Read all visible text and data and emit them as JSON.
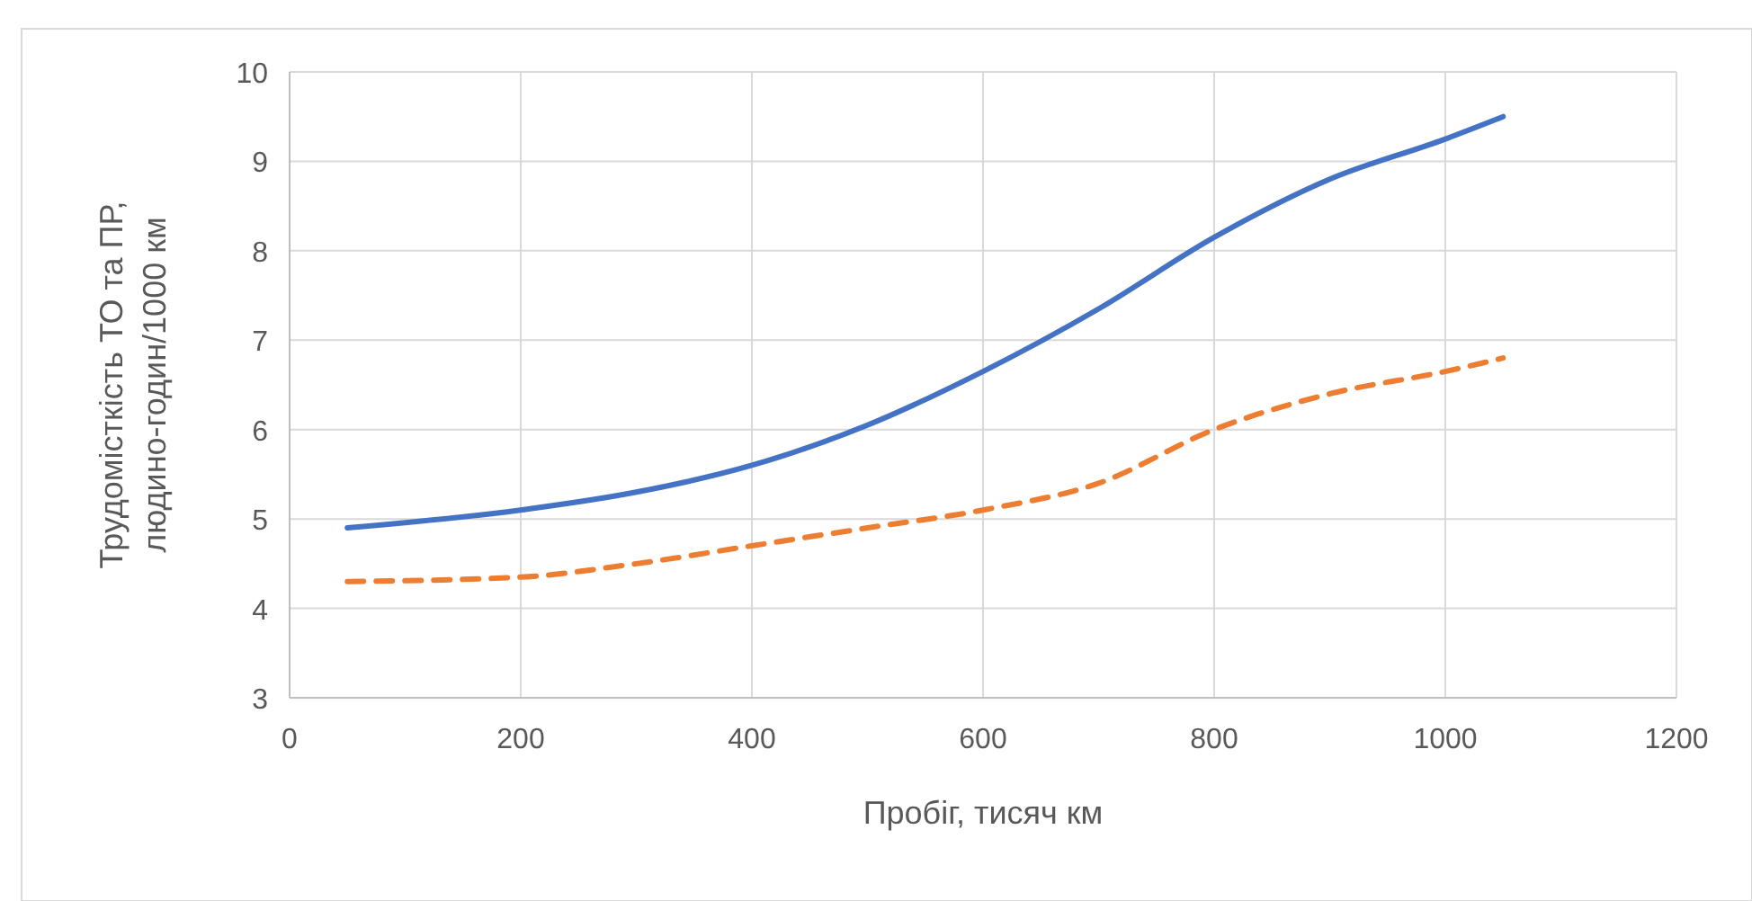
{
  "chart_data": {
    "type": "line",
    "xlabel": "Пробіг, тисяч км",
    "ylabel": "Трудомісткість ТО та ПР, людино-годин/1000 км",
    "x": [
      50,
      200,
      300,
      400,
      500,
      600,
      700,
      800,
      900,
      1000,
      1050
    ],
    "series": [
      {
        "color": "#4472c4",
        "line_style": "solid",
        "values": [
          4.9,
          5.1,
          5.3,
          5.6,
          6.05,
          6.65,
          7.35,
          8.15,
          8.8,
          9.25,
          9.5
        ]
      },
      {
        "color": "#ed7d31",
        "line_style": "dashed",
        "values": [
          4.3,
          4.35,
          4.5,
          4.7,
          4.9,
          5.1,
          5.4,
          6.0,
          6.4,
          6.65,
          6.8
        ]
      }
    ],
    "xlim": [
      0,
      1200
    ],
    "xticks": [
      0,
      200,
      400,
      600,
      800,
      1000,
      1200
    ],
    "ylim": [
      3,
      10
    ],
    "yticks": [
      3,
      4,
      5,
      6,
      7,
      8,
      9,
      10
    ],
    "grid": true,
    "marker": "none"
  }
}
